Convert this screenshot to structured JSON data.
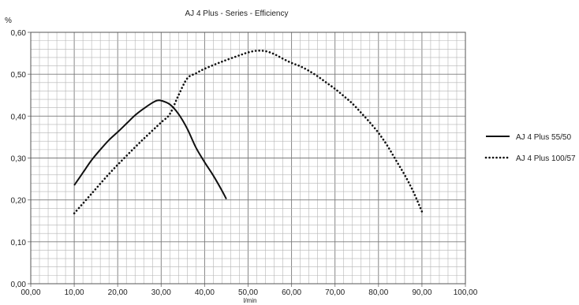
{
  "chart_data": {
    "type": "line",
    "title": "AJ 4 Plus - Series - Efficiency",
    "xlabel": "l/min",
    "ylabel": "%",
    "xlim": [
      0,
      100
    ],
    "ylim": [
      0,
      0.6
    ],
    "x_ticks": [
      "00,00",
      "10,00",
      "20,00",
      "30,00",
      "40,00",
      "50,00",
      "60,00",
      "70,00",
      "80,00",
      "90,00",
      "100,00"
    ],
    "y_ticks": [
      "0,00",
      "0,10",
      "0,20",
      "0,30",
      "0,40",
      "0,50",
      "0,60"
    ],
    "grid": true,
    "legend_position": "right",
    "series": [
      {
        "name": "AJ 4 Plus 55/50",
        "style": "solid",
        "color": "#111111",
        "points": [
          [
            10,
            0.235
          ],
          [
            12,
            0.265
          ],
          [
            14,
            0.295
          ],
          [
            16,
            0.32
          ],
          [
            18,
            0.343
          ],
          [
            20,
            0.362
          ],
          [
            22,
            0.382
          ],
          [
            24,
            0.402
          ],
          [
            26,
            0.418
          ],
          [
            28,
            0.432
          ],
          [
            29,
            0.437
          ],
          [
            30,
            0.437
          ],
          [
            32,
            0.428
          ],
          [
            34,
            0.405
          ],
          [
            36,
            0.37
          ],
          [
            38,
            0.325
          ],
          [
            40,
            0.29
          ],
          [
            42,
            0.258
          ],
          [
            44,
            0.222
          ],
          [
            45,
            0.202
          ]
        ]
      },
      {
        "name": "AJ 4 Plus 100/57",
        "style": "dotted",
        "color": "#111111",
        "points": [
          [
            10,
            0.168
          ],
          [
            14,
            0.215
          ],
          [
            18,
            0.262
          ],
          [
            22,
            0.305
          ],
          [
            26,
            0.346
          ],
          [
            30,
            0.385
          ],
          [
            32,
            0.405
          ],
          [
            34,
            0.45
          ],
          [
            36,
            0.49
          ],
          [
            38,
            0.502
          ],
          [
            40,
            0.513
          ],
          [
            44,
            0.53
          ],
          [
            48,
            0.545
          ],
          [
            50,
            0.552
          ],
          [
            52,
            0.556
          ],
          [
            54,
            0.555
          ],
          [
            56,
            0.548
          ],
          [
            58,
            0.537
          ],
          [
            60,
            0.527
          ],
          [
            62,
            0.519
          ],
          [
            64,
            0.508
          ],
          [
            66,
            0.495
          ],
          [
            68,
            0.48
          ],
          [
            70,
            0.465
          ],
          [
            72,
            0.448
          ],
          [
            74,
            0.43
          ],
          [
            76,
            0.408
          ],
          [
            78,
            0.385
          ],
          [
            80,
            0.36
          ],
          [
            82,
            0.33
          ],
          [
            84,
            0.295
          ],
          [
            86,
            0.26
          ],
          [
            88,
            0.22
          ],
          [
            90,
            0.172
          ]
        ]
      }
    ]
  }
}
